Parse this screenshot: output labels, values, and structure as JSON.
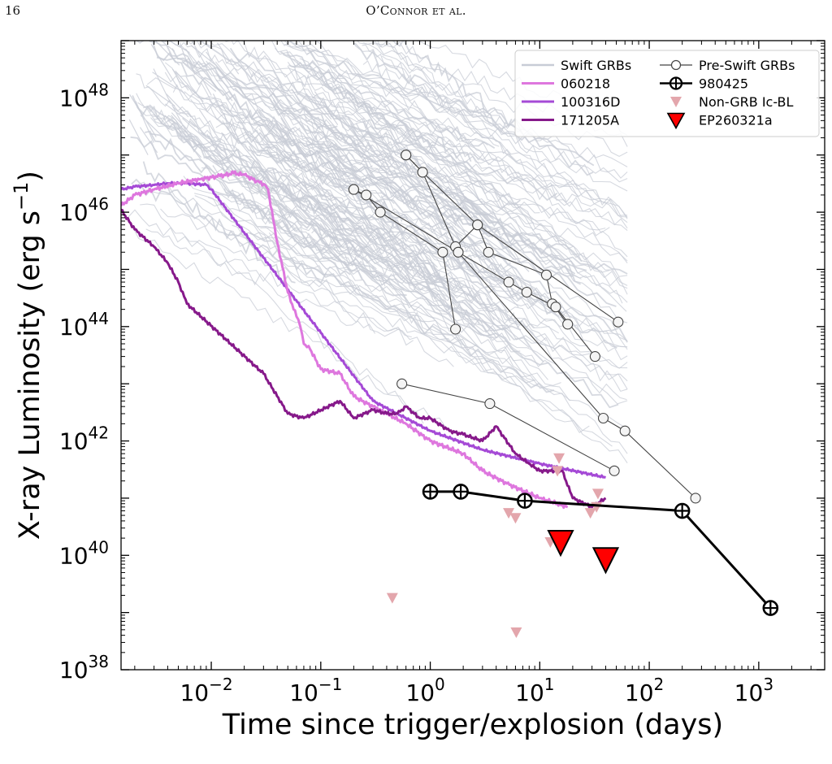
{
  "header": {
    "page_number": "16",
    "running_head": "O’Connor et al."
  },
  "chart_data": {
    "type": "line",
    "xlabel": "Time since trigger/explosion (days)",
    "ylabel": "X-ray Luminosity (erg s$^{-1}$)",
    "xscale": "log",
    "yscale": "log",
    "xlim": [
      0.0015,
      4000
    ],
    "ylim": [
      1e+38,
      1e+49
    ],
    "x_ticks": [
      {
        "value": 0.01,
        "label": "10",
        "exp": "−2"
      },
      {
        "value": 0.1,
        "label": "10",
        "exp": "−1"
      },
      {
        "value": 1,
        "label": "10",
        "exp": "0"
      },
      {
        "value": 10,
        "label": "10",
        "exp": "1"
      },
      {
        "value": 100,
        "label": "10",
        "exp": "2"
      },
      {
        "value": 1000,
        "label": "10",
        "exp": "3"
      }
    ],
    "y_ticks": [
      {
        "value": 1e+38,
        "label": "10",
        "exp": "38"
      },
      {
        "value": 1e+40,
        "label": "10",
        "exp": "40"
      },
      {
        "value": 1e+42,
        "label": "10",
        "exp": "42"
      },
      {
        "value": 1e+44,
        "label": "10",
        "exp": "44"
      },
      {
        "value": 1e+46,
        "label": "10",
        "exp": "46"
      },
      {
        "value": 1e+48,
        "label": "10",
        "exp": "48"
      }
    ],
    "grid": false,
    "legend_position": "top-right",
    "legend": [
      "Swift GRBs",
      "060218",
      "100316D",
      "171205A",
      "Pre-Swift GRBs",
      "980425",
      "Non-GRB Ic-BL",
      "EP260321a"
    ],
    "colors": {
      "swift": "#c8ccd6",
      "grb060218": "#de77de",
      "grb100316D": "#a54ad6",
      "grb171205A": "#86198a",
      "preswift": "#444444",
      "grb980425": "#000000",
      "nongrb": "#e3a6ac",
      "ep": "#ff0000"
    },
    "series": [
      {
        "name": "060218",
        "x": [
          0.0015,
          0.002,
          0.003,
          0.005,
          0.008,
          0.012,
          0.016,
          0.02,
          0.026,
          0.031,
          0.033,
          0.04,
          0.05,
          0.06,
          0.065,
          0.07,
          0.08,
          0.1,
          0.15,
          0.2,
          0.3,
          0.4,
          0.6,
          1.0,
          2.0,
          3.0,
          5.0,
          10,
          18
        ],
        "y": [
          1.3e+46,
          2e+46,
          2.5e+46,
          3.2e+46,
          3.8e+46,
          4.3e+46,
          4.8e+46,
          4.5e+46,
          3.5e+46,
          3e+46,
          2.5e+46,
          3e+45,
          4e+44,
          1.5e+44,
          1e+44,
          5e+43,
          4e+43,
          1.8e+43,
          1.5e+43,
          6e+42,
          4e+42,
          3e+42,
          2e+42,
          1e+42,
          6e+41,
          3e+41,
          1.8e+41,
          1e+41,
          7e+40
        ]
      },
      {
        "name": "100316D",
        "x": [
          0.0015,
          0.002,
          0.003,
          0.004,
          0.006,
          0.009,
          0.01,
          0.3,
          1,
          3,
          10,
          40
        ],
        "y": [
          2.5e+46,
          2.8e+46,
          3e+46,
          3.2e+46,
          3.2e+46,
          3e+46,
          2.5e+46,
          5e+42,
          1.5e+42,
          7e+41,
          4e+41,
          2.3e+41
        ]
      },
      {
        "name": "171205A",
        "x": [
          0.0015,
          0.002,
          0.003,
          0.004,
          0.005,
          0.006,
          0.03,
          0.05,
          0.07,
          0.15,
          0.2,
          0.3,
          0.4,
          0.5,
          0.6,
          0.8,
          1.0,
          1.5,
          2,
          3,
          4,
          6,
          8,
          10,
          14,
          16,
          20,
          30,
          40
        ],
        "y": [
          1.1e+46,
          5e+45,
          2.5e+45,
          1.3e+45,
          6e+44,
          2.5e+44,
          1.5e+43,
          3e+42,
          2.5e+42,
          5e+42,
          2.5e+42,
          3.5e+42,
          3e+42,
          3e+42,
          4e+42,
          2.5e+42,
          2.5e+42,
          1.5e+42,
          1.3e+42,
          1e+42,
          1.8e+42,
          6e+41,
          4e+41,
          3e+41,
          3e+41,
          3e+41,
          1e+41,
          7e+40,
          1e+41
        ]
      },
      {
        "name": "Pre-Swift GRBs",
        "lines": [
          {
            "x": [
              0.6,
              0.85,
              2.7,
              3.4,
              11.5,
              13,
              18
            ],
            "y": [
              1e+47,
              5e+46,
              6e+45,
              2e+45,
              8e+44,
              2.5e+44,
              1.1e+44
            ]
          },
          {
            "x": [
              0.6,
              0.85,
              1.7,
              2.7,
              52
            ],
            "y": [
              1e+47,
              5e+46,
              2.5e+45,
              6e+45,
              1.2e+44
            ]
          },
          {
            "x": [
              0.2,
              0.26,
              0.35,
              1.3,
              1.7
            ],
            "y": [
              2.5e+46,
              2e+46,
              1e+46,
              2e+45,
              9e+43
            ]
          },
          {
            "x": [
              0.2,
              1.8,
              5.2,
              7.6,
              14,
              32
            ],
            "y": [
              2.5e+46,
              2e+45,
              6e+44,
              4e+44,
              2.2e+44,
              3e+43
            ]
          },
          {
            "x": [
              1.8,
              38,
              60,
              265
            ],
            "y": [
              2e+45,
              2.5e+42,
              1.5e+42,
              1e+41
            ]
          },
          {
            "x": [
              0.55,
              3.5,
              48
            ],
            "y": [
              1e+43,
              4.5e+42,
              3e+41
            ]
          }
        ]
      },
      {
        "name": "980425",
        "x": [
          1.0,
          1.9,
          7.3,
          200,
          1280
        ],
        "y": [
          1.3e+41,
          1.3e+41,
          9e+40,
          6e+40,
          1.2e+39
        ]
      },
      {
        "name": "Non-GRB Ic-BL",
        "x": [
          0.45,
          5.2,
          6.0,
          6.1,
          12.5,
          14.5,
          29,
          33,
          34,
          15
        ],
        "y": [
          1.8e+39,
          5.5e+40,
          4.5e+40,
          4.5e+38,
          1.7e+40,
          3e+41,
          5.5e+40,
          7e+40,
          1.2e+41,
          5e+41
        ]
      },
      {
        "name": "EP260321a",
        "x": [
          15.5,
          40
        ],
        "y": [
          1.7e+40,
          8.5e+39
        ]
      }
    ]
  }
}
